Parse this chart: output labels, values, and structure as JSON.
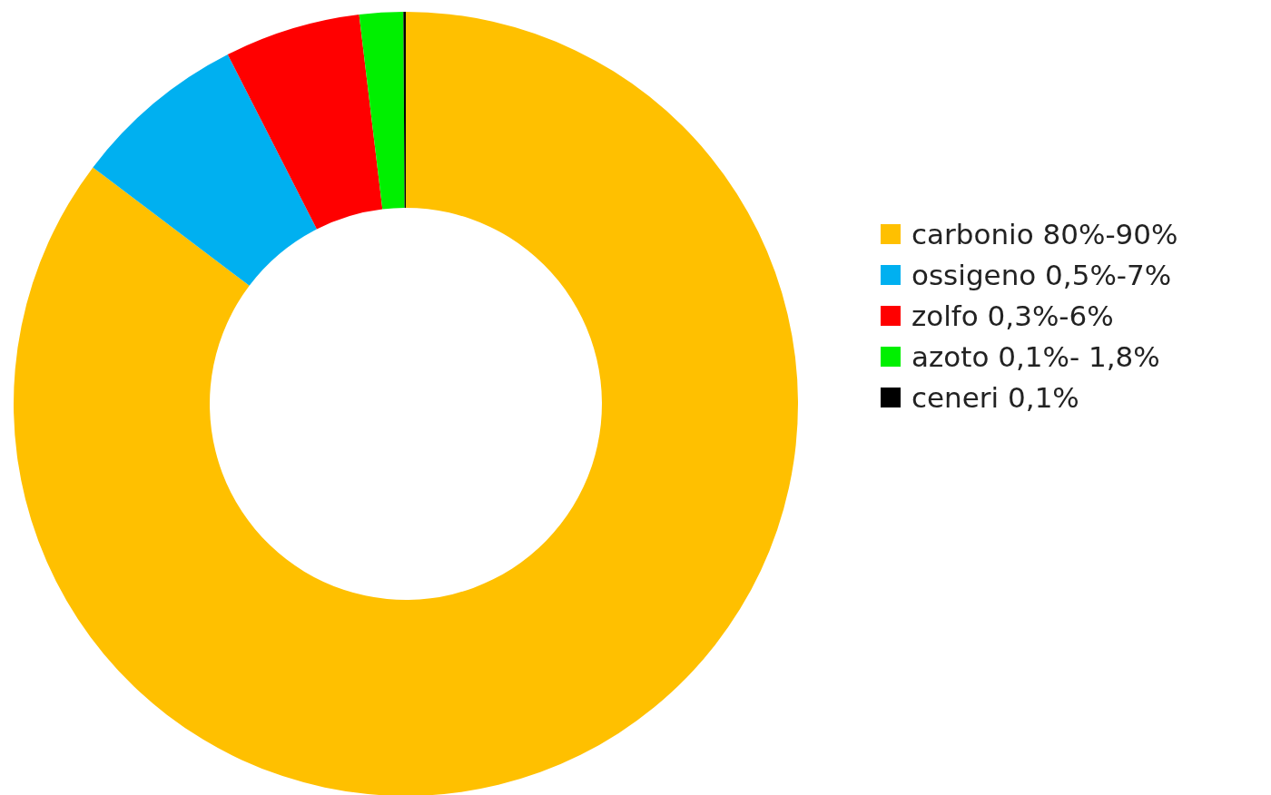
{
  "chart_data": {
    "type": "donut",
    "categories": [
      "carbonio 80%-90%",
      "ossigeno 0,5%-7%",
      "zolfo 0,3%-6%",
      "azoto 0,1%- 1,8%",
      "ceneri 0,1%"
    ],
    "values": [
      85.3,
      7.2,
      5.6,
      1.8,
      0.1
    ],
    "colors": [
      "#ffc000",
      "#00b0f0",
      "#ff0000",
      "#00f000",
      "#000000"
    ],
    "legend": "right"
  }
}
